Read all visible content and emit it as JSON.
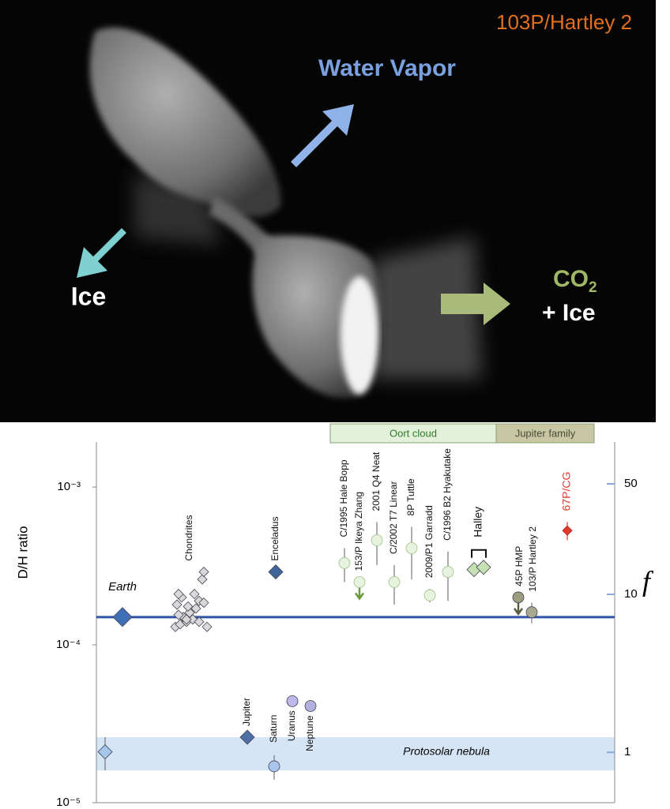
{
  "photo": {
    "title": "103P/Hartley 2",
    "water_vapor": "Water Vapor",
    "ice": "Ice",
    "co2": "CO",
    "co2_subscript": "2",
    "co2_ice": "+ Ice"
  },
  "chart_data": {
    "type": "scatter",
    "y_label": "D/H ratio",
    "y2_label": "f",
    "log_y": true,
    "ylim": [
      1e-05,
      0.00193
    ],
    "yticks": [
      {
        "value": 0.001,
        "label": "10⁻³"
      },
      {
        "value": 0.0001,
        "label": "10⁻⁴"
      },
      {
        "value": 1e-05,
        "label": "10⁻⁵"
      }
    ],
    "y2lim": [
      0.48,
      92
    ],
    "y2ticks": [
      1,
      10,
      50
    ],
    "groups": [
      {
        "name": "Oort cloud",
        "color": "#e3f0da"
      },
      {
        "name": "Jupiter family",
        "color": "#c7c7a4"
      }
    ],
    "band": [
      1.6e-05,
      2.6e-05
    ],
    "objects": [
      {
        "label": "Protosolar nebula",
        "values": [
          2.1e-05
        ],
        "errors": [
          5e-06
        ],
        "marker": "diamond",
        "color": "#a7c6ec"
      },
      {
        "label": "Earth",
        "values": [
          0.00015
        ],
        "marker": "diamond",
        "color": "#3f6fb6",
        "reference_line": true
      },
      {
        "label": "Chondrites",
        "values": [
          0.00013,
          0.000135,
          0.00014,
          0.000145,
          0.00015,
          0.000155,
          0.00016,
          0.00017,
          0.00018,
          0.00019,
          0.0002,
          0.00021,
          0.00021,
          0.000185,
          0.000175,
          0.00014,
          0.00013,
          0.000145,
          0.00026,
          0.00029
        ],
        "marker": "diamond",
        "color": "#d9d9d9"
      },
      {
        "label": "Enceladus",
        "values": [
          0.00029
        ],
        "marker": "diamond",
        "color": "#3f6496"
      },
      {
        "label": "Jupiter",
        "values": [
          2.6e-05
        ],
        "marker": "diamond",
        "color": "#4d6fa3"
      },
      {
        "label": "Saturn",
        "values": [
          1.7e-05
        ],
        "errors": [
          3e-06
        ],
        "marker": "circle",
        "color": "#a9c6ec"
      },
      {
        "label": "Uranus",
        "values": [
          4.4e-05
        ],
        "marker": "circle",
        "color": "#bdb9e8"
      },
      {
        "label": "Neptune",
        "values": [
          4.1e-05
        ],
        "marker": "circle",
        "color": "#b3b0e0"
      },
      {
        "label": "C/1995 Hale Bopp",
        "values": [
          0.00033
        ],
        "errors": [
          8e-05
        ],
        "marker": "circle",
        "color": "#e8f3df"
      },
      {
        "label": "153/P Ikeya Zhang",
        "values": [
          0.00025
        ],
        "marker": "circle",
        "color": "#e8f3df",
        "upper_limit": true
      },
      {
        "label": "2001 Q4 Neat",
        "values": [
          0.00046
        ],
        "errors": [
          0.00014
        ],
        "marker": "circle",
        "color": "#e8f3df"
      },
      {
        "label": "C/2002 T7 Linear",
        "values": [
          0.00025
        ],
        "errors": [
          7e-05
        ],
        "marker": "circle",
        "color": "#e8f3df"
      },
      {
        "label": "8P Tuttle",
        "values": [
          0.00041
        ],
        "errors": [
          0.00015
        ],
        "marker": "circle",
        "color": "#e8f3df"
      },
      {
        "label": "2009/P1 Garradd",
        "values": [
          0.000206
        ],
        "errors": [
          2e-05
        ],
        "marker": "circle",
        "color": "#e8f3df"
      },
      {
        "label": "C/1996 B2 Hyakutake",
        "values": [
          0.00029
        ],
        "errors": [
          0.0001
        ],
        "marker": "circle",
        "color": "#e8f3df"
      },
      {
        "label": "Halley",
        "values": [
          0.0003,
          0.00031
        ],
        "marker": "diamond",
        "color": "#c5e0b3"
      },
      {
        "label": "45P HMP",
        "values": [
          0.0002
        ],
        "marker": "circle",
        "color": "#9c9c80",
        "upper_limit": true
      },
      {
        "label": "103/P Hartley 2",
        "values": [
          0.000161
        ],
        "errors": [
          2.4e-05
        ],
        "marker": "circle",
        "color": "#a8a890"
      },
      {
        "label": "67P/CG",
        "values": [
          0.00053
        ],
        "errors": [
          7e-05
        ],
        "marker": "diamond",
        "color": "#e23a2e"
      }
    ]
  }
}
